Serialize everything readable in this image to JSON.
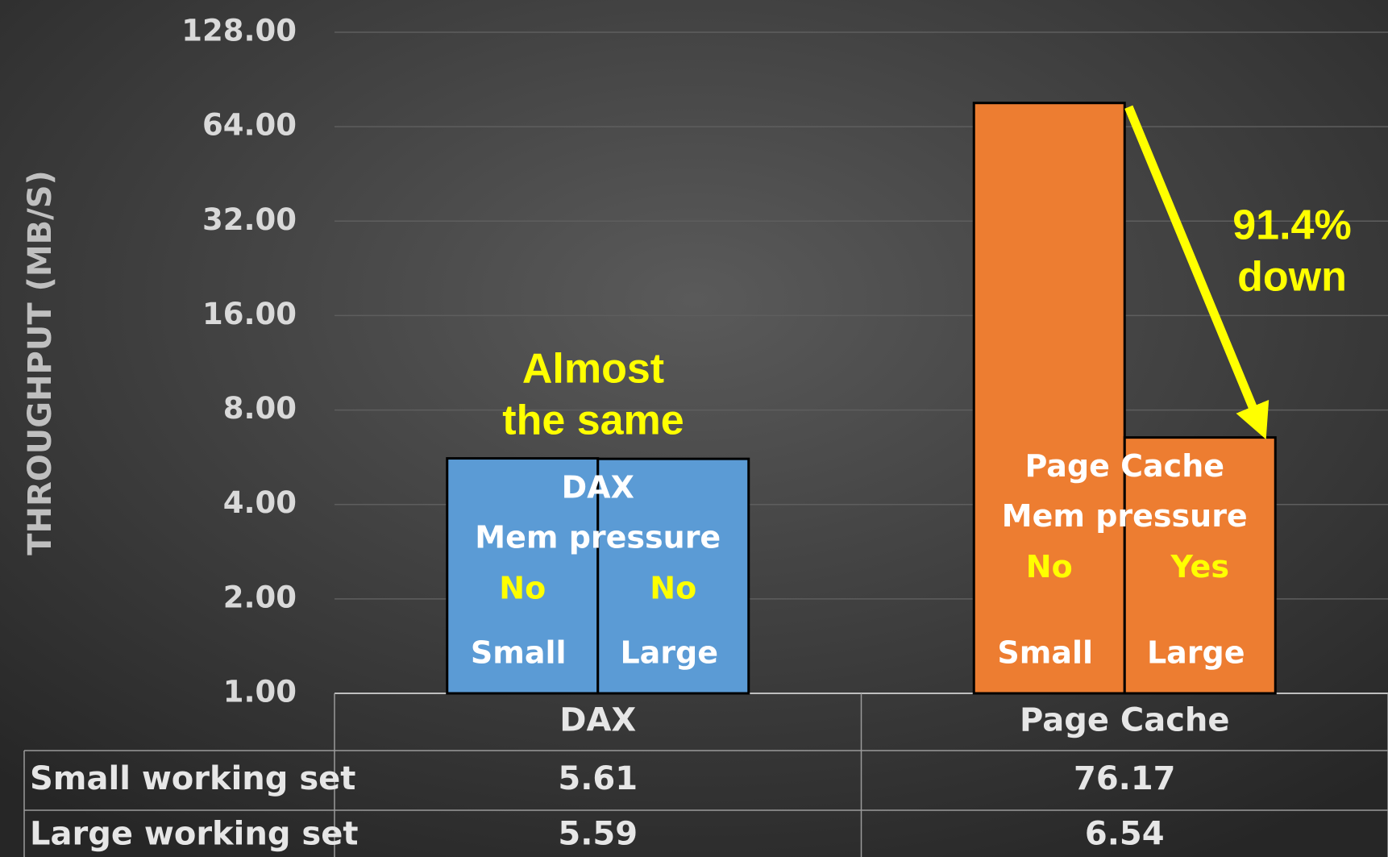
{
  "chart_data": {
    "type": "bar",
    "y_label": "THROUGHPUT (MB/S)",
    "categories": [
      "DAX",
      "Page Cache"
    ],
    "category_colors": [
      "#5b9bd5",
      "#ed7d31"
    ],
    "series": [
      {
        "name": "Small working set",
        "values": [
          5.61,
          76.17
        ]
      },
      {
        "name": "Large working set",
        "values": [
          5.59,
          6.54
        ]
      }
    ],
    "log_scale": true,
    "ylim": [
      1,
      128
    ],
    "yticks": [
      {
        "value": 1,
        "label": "1.00"
      },
      {
        "value": 2,
        "label": "2.00"
      },
      {
        "value": 4,
        "label": "4.00"
      },
      {
        "value": 8,
        "label": "8.00"
      },
      {
        "value": 16,
        "label": "16.00"
      },
      {
        "value": 32,
        "label": "32.00"
      },
      {
        "value": 64,
        "label": "64.00"
      },
      {
        "value": 128,
        "label": "128.00"
      }
    ],
    "grid": true,
    "bar_labels": [
      {
        "title": "DAX",
        "subtitle": "Mem pressure",
        "pressure": [
          "No",
          "No"
        ],
        "sizes": [
          "Small",
          "Large"
        ]
      },
      {
        "title": "Page Cache",
        "subtitle": "Mem pressure",
        "pressure": [
          "No",
          "Yes"
        ],
        "sizes": [
          "Small",
          "Large"
        ]
      }
    ],
    "annotations": [
      {
        "lines": [
          "Almost",
          "the same"
        ]
      },
      {
        "lines": [
          "91.4%",
          "down"
        ]
      }
    ]
  }
}
